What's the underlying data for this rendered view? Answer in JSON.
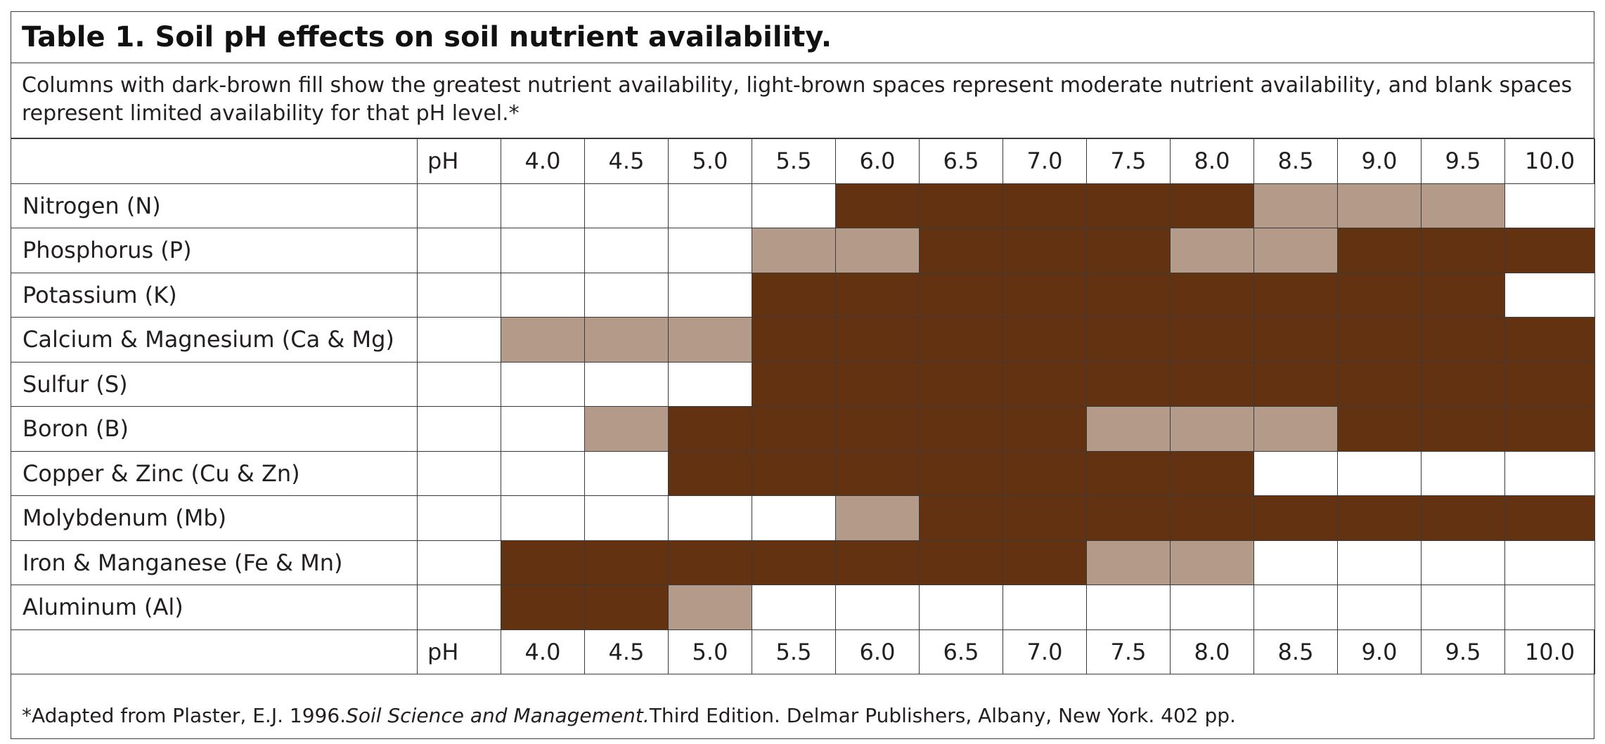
{
  "title": "Table 1. Soil pH effects on soil nutrient availability.",
  "description": "Columns with dark-brown fill show the greatest nutrient availability, light-brown spaces represent moderate nutrient availability, and blank spaces represent limited availability for that pH level.*",
  "ph_label": "pH",
  "ph_values": [
    "4.0",
    "4.5",
    "5.0",
    "5.5",
    "6.0",
    "6.5",
    "7.0",
    "7.5",
    "8.0",
    "8.5",
    "9.0",
    "9.5",
    "10.0"
  ],
  "colors": {
    "greatest": "#633211",
    "moderate": "#b39a89",
    "limited": "#ffffff"
  },
  "availability_key": {
    "2": "greatest",
    "1": "moderate",
    "0": "limited"
  },
  "nutrients": [
    {
      "name": "Nitrogen (N)",
      "levels": [
        0,
        0,
        0,
        0,
        2,
        2,
        2,
        2,
        2,
        1,
        1,
        1,
        0
      ]
    },
    {
      "name": "Phosphorus (P)",
      "levels": [
        0,
        0,
        0,
        1,
        1,
        2,
        2,
        2,
        1,
        1,
        2,
        2,
        2
      ]
    },
    {
      "name": "Potassium (K)",
      "levels": [
        0,
        0,
        0,
        2,
        2,
        2,
        2,
        2,
        2,
        2,
        2,
        2,
        0
      ]
    },
    {
      "name": "Calcium & Magnesium (Ca & Mg)",
      "levels": [
        1,
        1,
        1,
        2,
        2,
        2,
        2,
        2,
        2,
        2,
        2,
        2,
        2
      ]
    },
    {
      "name": "Sulfur (S)",
      "levels": [
        0,
        0,
        0,
        2,
        2,
        2,
        2,
        2,
        2,
        2,
        2,
        2,
        2
      ]
    },
    {
      "name": "Boron (B)",
      "levels": [
        0,
        1,
        2,
        2,
        2,
        2,
        2,
        1,
        1,
        1,
        2,
        2,
        2
      ]
    },
    {
      "name": "Copper & Zinc (Cu & Zn)",
      "levels": [
        0,
        0,
        2,
        2,
        2,
        2,
        2,
        2,
        2,
        0,
        0,
        0,
        0
      ]
    },
    {
      "name": "Molybdenum (Mb)",
      "levels": [
        0,
        0,
        0,
        0,
        1,
        2,
        2,
        2,
        2,
        2,
        2,
        2,
        2
      ]
    },
    {
      "name": "Iron & Manganese (Fe & Mn)",
      "levels": [
        2,
        2,
        2,
        2,
        2,
        2,
        2,
        1,
        1,
        0,
        0,
        0,
        0
      ]
    },
    {
      "name": "Aluminum (Al)",
      "levels": [
        2,
        2,
        1,
        0,
        0,
        0,
        0,
        0,
        0,
        0,
        0,
        0,
        0
      ]
    }
  ],
  "footnote": {
    "prefix": "*Adapted from Plaster, E.J. 1996. ",
    "book_title": "Soil Science and Management.",
    "suffix": " Third Edition. Delmar Publishers, Albany, New York. 402 pp."
  }
}
